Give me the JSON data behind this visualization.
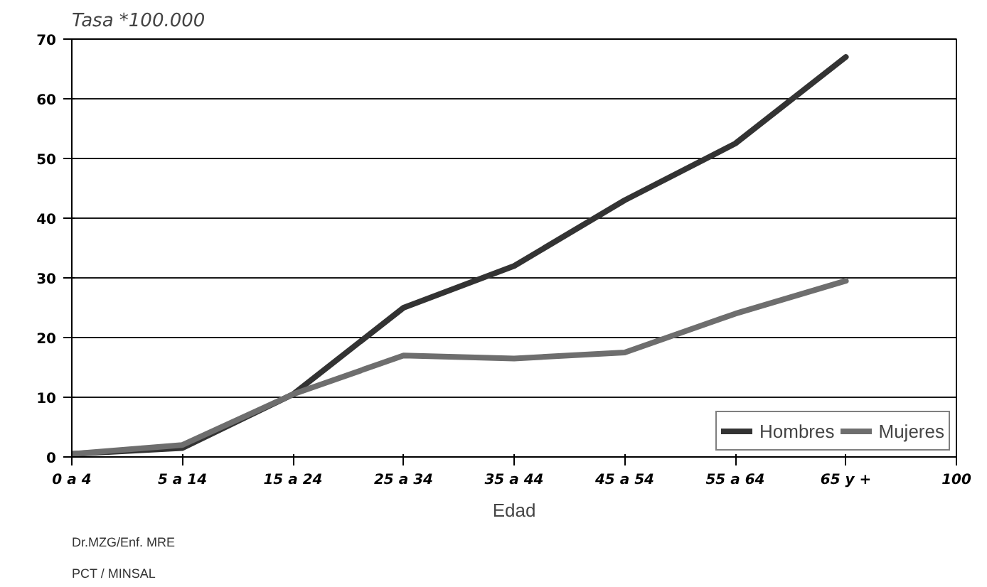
{
  "chart_data": {
    "type": "line",
    "title": "Tasa *100.000",
    "xlabel": "Edad",
    "categories": [
      "0 a 4",
      "5 a 14",
      "15 a 24",
      "25 a 34",
      "35 a 44",
      "45 a 54",
      "55 a 64",
      "65 y +",
      "100"
    ],
    "series": [
      {
        "name": "Hombres",
        "color": "#333333",
        "values": [
          0.5,
          1.5,
          10.5,
          25,
          32,
          43,
          52.5,
          67,
          null
        ]
      },
      {
        "name": "Mujeres",
        "color": "#6e6e6e",
        "values": [
          0.5,
          2,
          10.5,
          17,
          16.5,
          17.5,
          24,
          29.5,
          null
        ]
      }
    ],
    "ylim": [
      0,
      70
    ],
    "yticks": [
      0,
      10,
      20,
      30,
      40,
      50,
      60,
      70
    ],
    "grid": "y",
    "legend": "bottom",
    "marker": "none",
    "line_style": "solid",
    "annotations": [
      "Dr.MZG/Enf. MRE",
      "PCT / MINSAL"
    ]
  }
}
